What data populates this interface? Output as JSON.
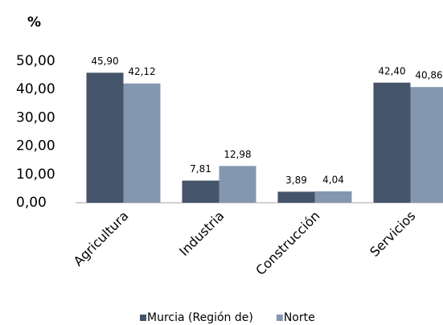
{
  "chart_data": {
    "type": "bar",
    "title": "%",
    "categories": [
      "Agricultura",
      "Industria",
      "Construcción",
      "Servicios"
    ],
    "series": [
      {
        "name": "Murcia (Región de)",
        "color": "#44546a",
        "values": [
          45.9,
          7.81,
          3.89,
          42.4
        ],
        "value_labels": [
          "45,90",
          "7,81",
          "3,89",
          "42,40"
        ]
      },
      {
        "name": "Norte",
        "color": "#8497b0",
        "values": [
          42.12,
          12.98,
          4.04,
          40.86
        ],
        "value_labels": [
          "42,12",
          "12,98",
          "4,04",
          "40,86"
        ]
      }
    ],
    "ylim": [
      0,
      50
    ],
    "yticks": [
      {
        "value": 0,
        "label": "0,00"
      },
      {
        "value": 10,
        "label": "10,00"
      },
      {
        "value": 20,
        "label": "20,00"
      },
      {
        "value": 30,
        "label": "30,00"
      },
      {
        "value": 40,
        "label": "40,00"
      },
      {
        "value": 50,
        "label": "50,00"
      }
    ],
    "grid": false,
    "legend": "bottom"
  }
}
